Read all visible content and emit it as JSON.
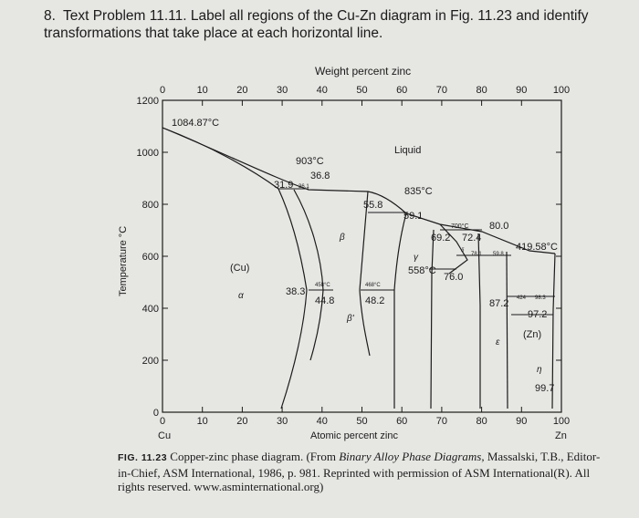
{
  "problem": {
    "number": "8.",
    "text": "Text Problem 11.11. Label all regions of the Cu-Zn diagram in Fig. 11.23 and identify transformations that take place at each horizontal line."
  },
  "chart_data": {
    "type": "phase-diagram",
    "title": "Weight percent zinc",
    "xlabel": "Atomic percent zinc",
    "ylabel": "Temperature °C",
    "xlim": [
      0,
      100
    ],
    "ylim": [
      0,
      1200
    ],
    "x_ticks": [
      "0",
      "10",
      "20",
      "30",
      "40",
      "50",
      "60",
      "70",
      "80",
      "90",
      "100"
    ],
    "top_ticks": [
      "0",
      "10",
      "20",
      "30",
      "40",
      "50",
      "60",
      "70",
      "80",
      "90",
      "100"
    ],
    "y_ticks": [
      "1200",
      "1000",
      "800",
      "600",
      "400",
      "200",
      "0"
    ],
    "x_end_labels": {
      "left": "Cu",
      "right": "Zn"
    },
    "regions": {
      "liquid": "Liquid",
      "alpha_cu": "(Cu)",
      "alpha": "α",
      "beta": "β",
      "beta_prime": "β'",
      "gamma": "γ",
      "delta": "δ",
      "epsilon": "ε",
      "eta": "η",
      "zn": "(Zn)"
    },
    "annotations": {
      "cu_melt": "1084.87°C",
      "t903": "903°C",
      "c368": "36.8",
      "c319": "31.9",
      "c361": "36.1",
      "t835": "835°C",
      "c558": "55.8",
      "c591": "59.1",
      "t700": "700°C",
      "c800": "80.0",
      "c692": "69.2",
      "c724": "72.4",
      "t41958": "419.58°C",
      "c781": "78.1",
      "c598": "59.8",
      "t558": "558°C",
      "c760": "76.0",
      "t458": "458°C",
      "t468": "468°C",
      "c383": "38.3",
      "c448": "44.8",
      "c482": "48.2",
      "t424": "424",
      "c983": "98.3",
      "c872": "87.2",
      "c972": "97.2",
      "c997": "99.7"
    },
    "horizontal_lines_C": [
      903,
      835,
      700,
      598,
      558,
      468,
      458,
      424,
      419.58
    ],
    "melting_points_C": {
      "Cu": 1084.87,
      "Zn": 419.58
    }
  },
  "caption": {
    "fig_label": "FIG. 11.23",
    "text_a": "Copper-zinc phase diagram. (From ",
    "source_title": "Binary Alloy Phase Diagrams,",
    "text_b": " Massalski, T.B., Editor-in-Chief, ASM International, 1986, p. 981. Reprinted with permission of ASM International(R). All rights reserved. www.asminternational.org)"
  }
}
